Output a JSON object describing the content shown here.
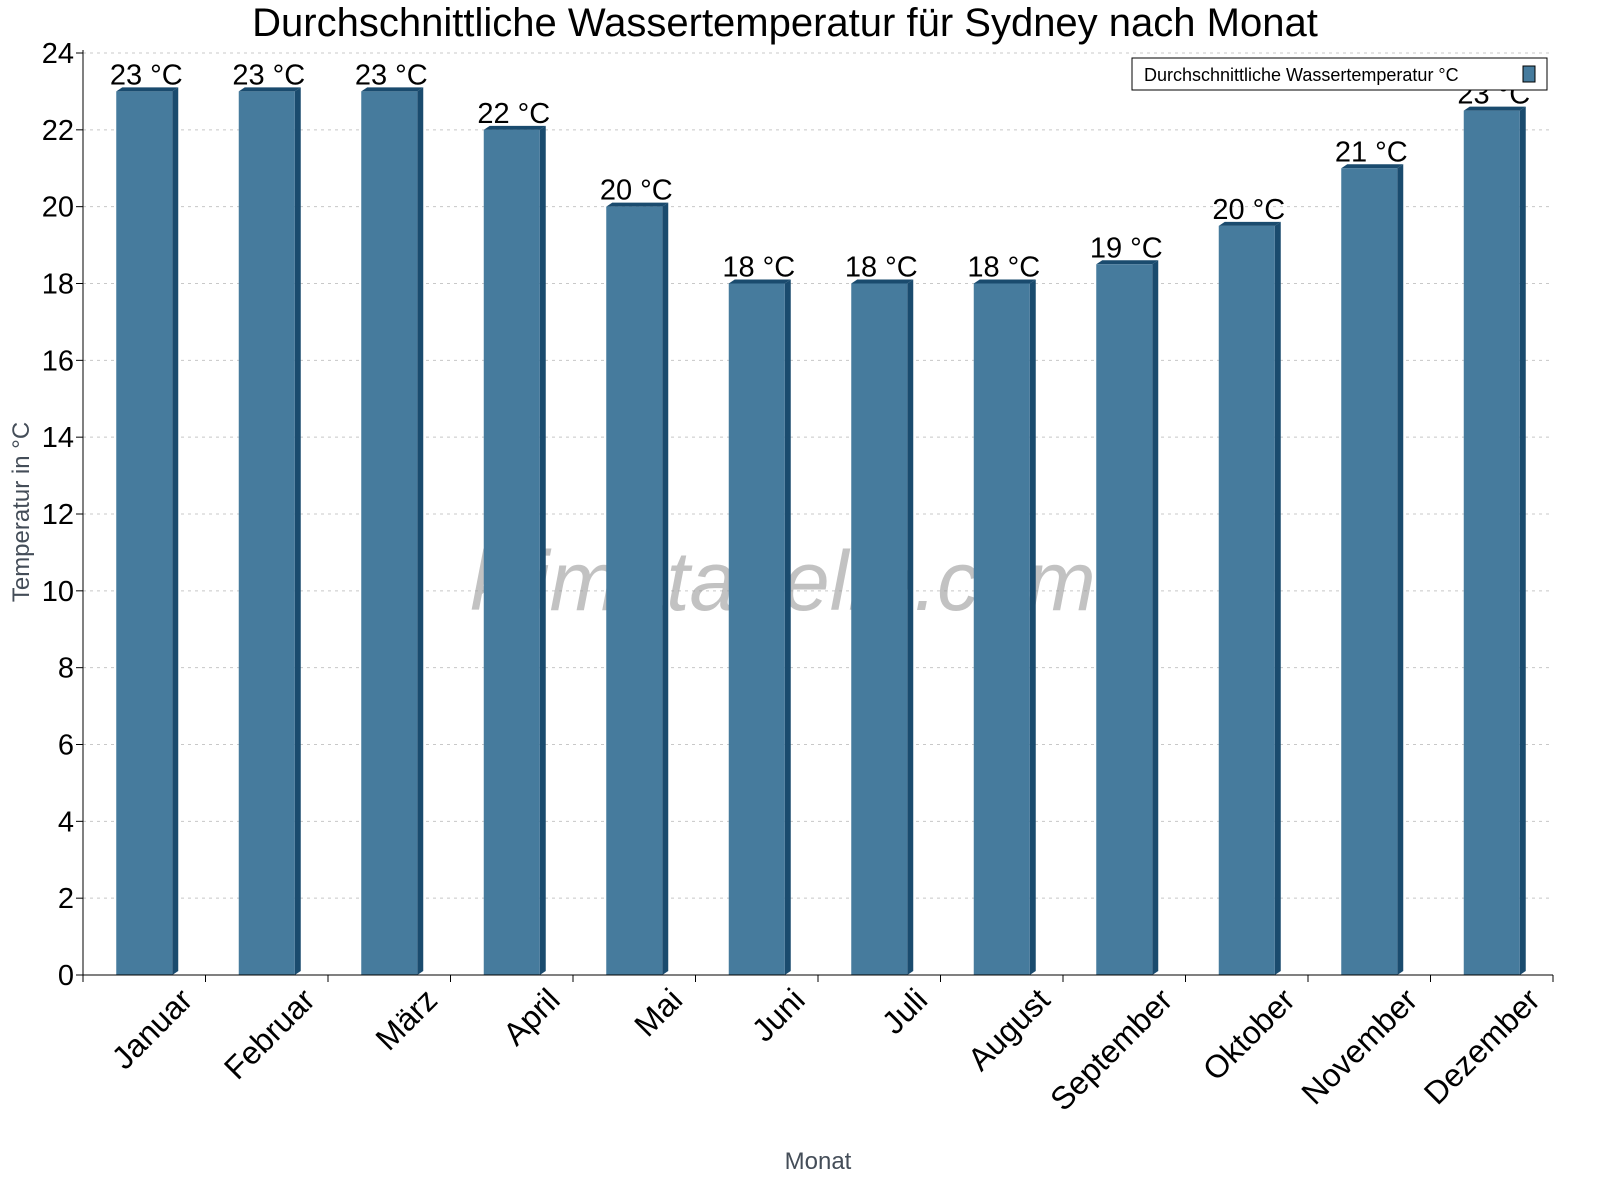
{
  "chart_data": {
    "type": "bar",
    "title": "Durchschnittliche Wassertemperatur für Sydney nach Monat",
    "xlabel": "Monat",
    "ylabel": "Temperatur in °C",
    "ylim": [
      0,
      24
    ],
    "yticks": [
      0,
      2,
      4,
      6,
      8,
      10,
      12,
      14,
      16,
      18,
      20,
      22,
      24
    ],
    "grid": true,
    "legend_position": "top-right",
    "categories": [
      "Januar",
      "Februar",
      "März",
      "April",
      "Mai",
      "Juni",
      "Juli",
      "August",
      "September",
      "Oktober",
      "November",
      "Dezember"
    ],
    "series": [
      {
        "name": "Durchschnittliche Wassertemperatur °C",
        "values": [
          23,
          23,
          23,
          22,
          20,
          18,
          18,
          18,
          18.5,
          19.5,
          21,
          22.5
        ],
        "labels": [
          "23 °C",
          "23 °C",
          "23 °C",
          "22 °C",
          "20 °C",
          "18 °C",
          "18 °C",
          "18 °C",
          "19 °C",
          "20 °C",
          "21 °C",
          "23 °C"
        ],
        "color": "#467b9d",
        "side_color": "#1a4b6e"
      }
    ],
    "watermark": "klimatabelle.com"
  }
}
